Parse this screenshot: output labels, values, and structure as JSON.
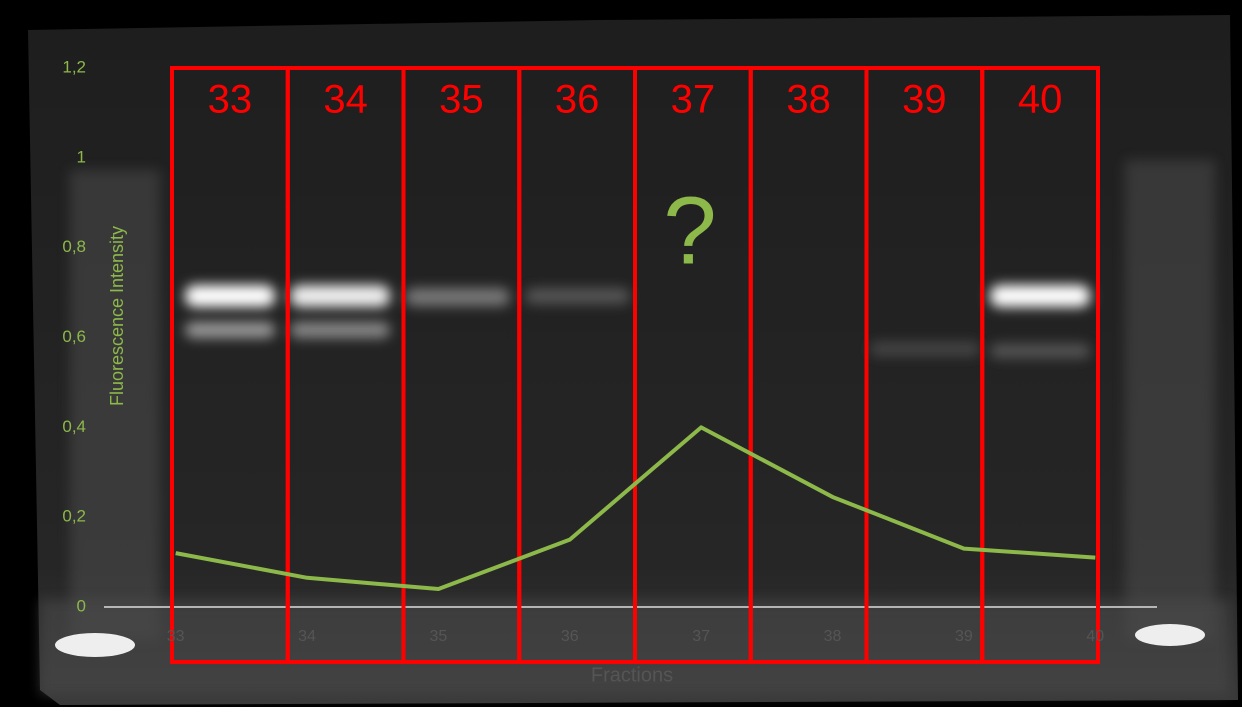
{
  "chart_data": {
    "type": "line",
    "categories": [
      "33",
      "34",
      "35",
      "36",
      "37",
      "38",
      "39",
      "40"
    ],
    "values": [
      0.12,
      0.065,
      0.04,
      0.15,
      0.4,
      0.245,
      0.13,
      0.11
    ],
    "color": "#8db84a",
    "ylim": [
      0,
      1.2
    ],
    "yticks": [
      0,
      {
        "value": 0.2,
        "label": "0,2"
      },
      {
        "value": 0.4,
        "label": "0,4"
      },
      {
        "value": 0.6,
        "label": "0,6"
      },
      {
        "value": 0.8,
        "label": "0,8"
      },
      1,
      {
        "value": 1.2,
        "label": "1,2"
      }
    ],
    "ylabel": "Fluorescence Intensity",
    "xlabel": "Fractions",
    "annotation": "?"
  }
}
